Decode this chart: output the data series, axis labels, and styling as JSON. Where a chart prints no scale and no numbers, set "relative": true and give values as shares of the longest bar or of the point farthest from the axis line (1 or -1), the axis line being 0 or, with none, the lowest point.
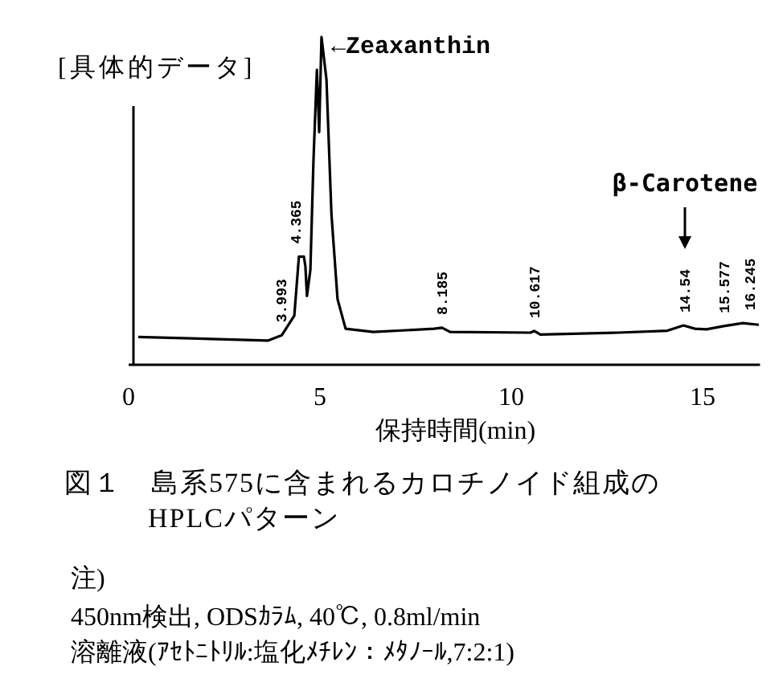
{
  "chart_data": {
    "type": "line",
    "title": "[具体的データ]",
    "xlabel": "保持時間(min)",
    "relative": true,
    "color": "#000000",
    "xlim": [
      0,
      16.5
    ],
    "xticks": [
      0,
      5,
      10,
      15
    ],
    "x": [
      0.25,
      3.65,
      4.0,
      4.33,
      4.45,
      4.58,
      4.62,
      4.66,
      4.75,
      4.83,
      4.92,
      4.98,
      5.04,
      5.17,
      5.3,
      5.46,
      5.67,
      6.39,
      7.98,
      8.19,
      8.4,
      10.5,
      10.6,
      10.76,
      12.8,
      14.08,
      14.5,
      14.8,
      15.1,
      15.55,
      16.05,
      16.47
    ],
    "values": [
      0.085,
      0.074,
      0.09,
      0.15,
      0.33,
      0.33,
      0.3,
      0.21,
      0.29,
      0.62,
      0.9,
      0.71,
      1.0,
      0.87,
      0.46,
      0.2,
      0.11,
      0.1,
      0.11,
      0.113,
      0.1,
      0.098,
      0.103,
      0.092,
      0.098,
      0.104,
      0.12,
      0.11,
      0.108,
      0.118,
      0.127,
      0.122
    ],
    "annotations": [
      {
        "text": "←Zeaxanthin",
        "x": 5.04,
        "y": 1.0
      },
      "β-Carotene",
      {
        "text": "3.993",
        "x": 3.993,
        "y": 0.09
      },
      {
        "text": "4.365",
        "x": 4.365,
        "y": 0.33
      },
      {
        "text": "8.185",
        "x": 8.185,
        "y": 0.113
      },
      {
        "text": "10.617",
        "x": 10.617,
        "y": 0.103
      },
      {
        "text": "14.54",
        "x": 14.54,
        "y": 0.12
      },
      {
        "text": "15.577",
        "x": 15.577,
        "y": 0.118
      },
      {
        "text": "16.245",
        "x": 16.245,
        "y": 0.127
      },
      "図１　島系575に含まれるカロチノイド組成のHPLCパターン",
      "注)",
      "450nm検出, ODSｶﾗﾑ, 40℃, 0.8ml/min",
      "溶離液(ｱｾﾄﾆﾄﾘﾙ:塩化ﾒﾁﾚﾝ：ﾒﾀﾉｰﾙ,7:2:1)"
    ]
  }
}
